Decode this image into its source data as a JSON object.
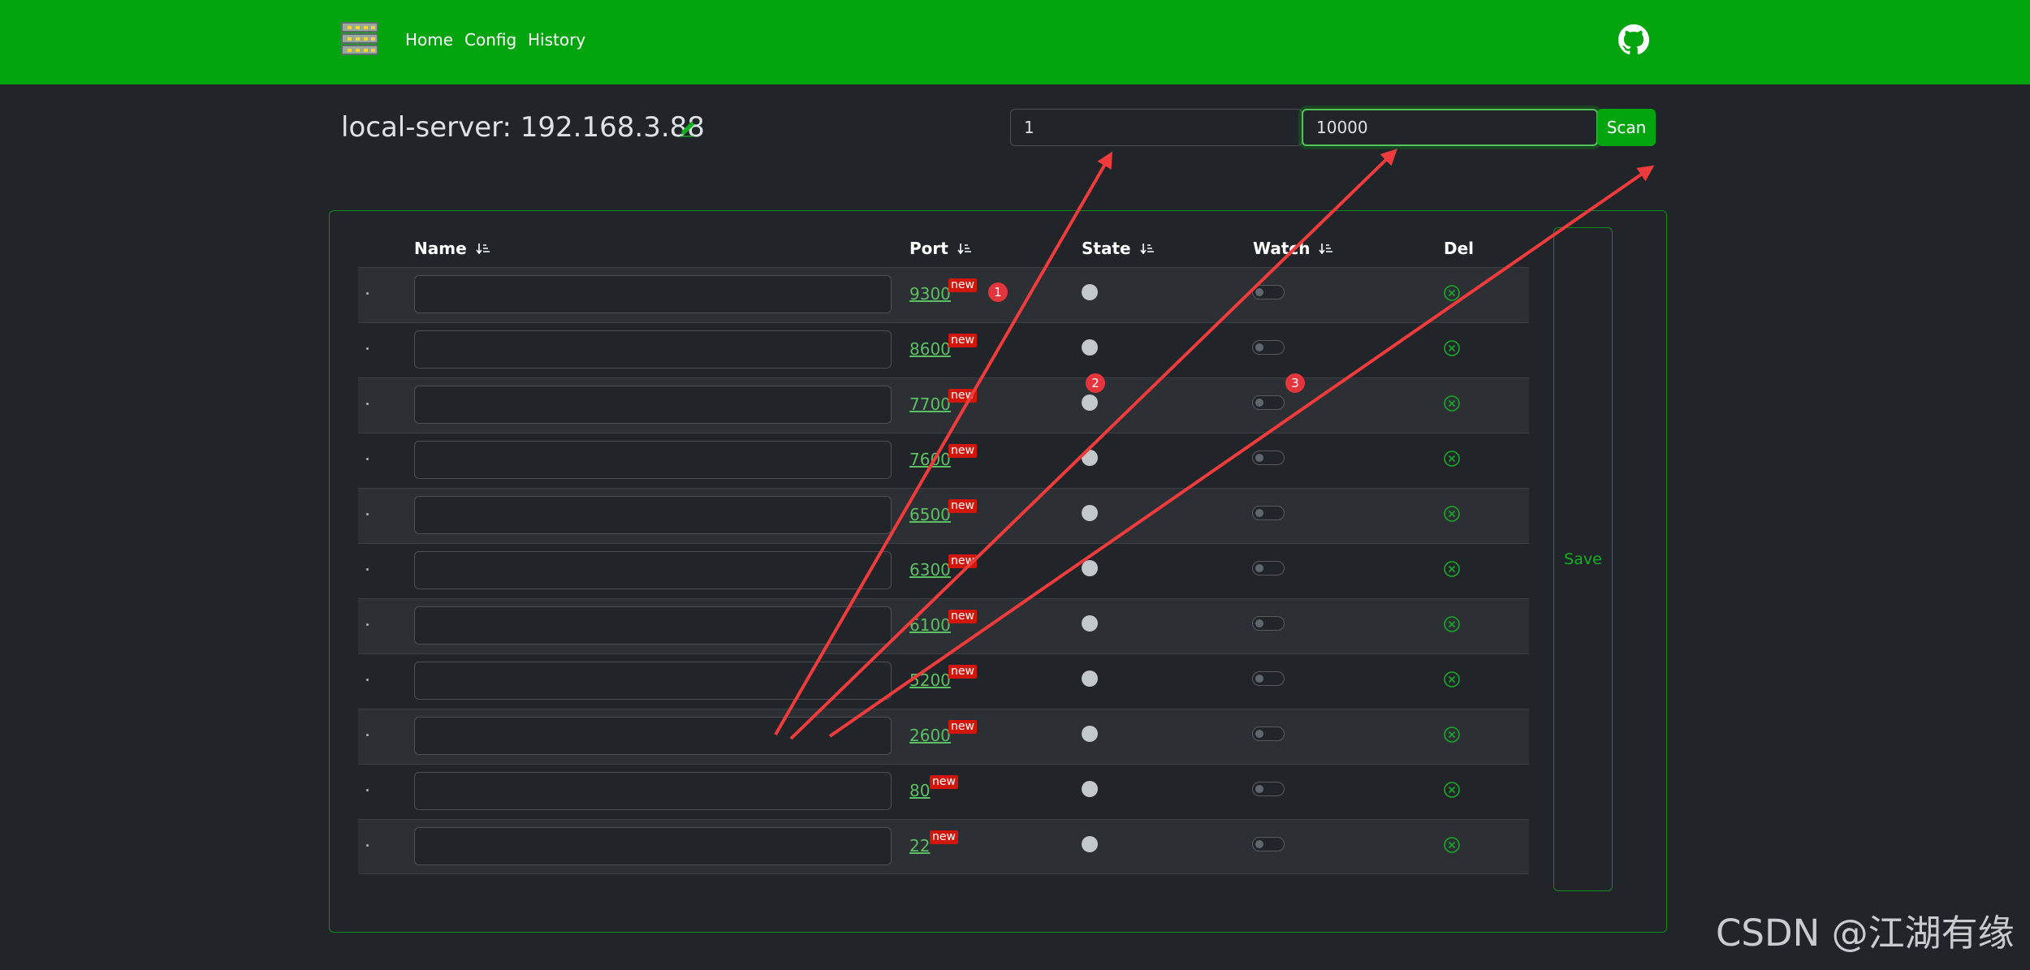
{
  "nav": {
    "links": [
      "Home",
      "Config",
      "History"
    ]
  },
  "server": {
    "title": "local-server: 192.168.3.88"
  },
  "scan": {
    "start_value": "1",
    "end_value": "10000",
    "button_label": "Scan"
  },
  "table": {
    "headers": {
      "name": "Name",
      "port": "Port",
      "state": "State",
      "watch": "Watch",
      "del": "Del"
    },
    "rows": [
      {
        "index": ".",
        "name": "",
        "port": "9300",
        "badge": "new",
        "state": "off",
        "watch": false
      },
      {
        "index": ".",
        "name": "",
        "port": "8600",
        "badge": "new",
        "state": "off",
        "watch": false
      },
      {
        "index": ".",
        "name": "",
        "port": "7700",
        "badge": "new",
        "state": "off",
        "watch": false
      },
      {
        "index": ".",
        "name": "",
        "port": "7600",
        "badge": "new",
        "state": "off",
        "watch": false
      },
      {
        "index": ".",
        "name": "",
        "port": "6500",
        "badge": "new",
        "state": "off",
        "watch": false
      },
      {
        "index": ".",
        "name": "",
        "port": "6300",
        "badge": "new",
        "state": "off",
        "watch": false
      },
      {
        "index": ".",
        "name": "",
        "port": "6100",
        "badge": "new",
        "state": "off",
        "watch": false
      },
      {
        "index": ".",
        "name": "",
        "port": "5200",
        "badge": "new",
        "state": "off",
        "watch": false
      },
      {
        "index": ".",
        "name": "",
        "port": "2600",
        "badge": "new",
        "state": "off",
        "watch": false
      },
      {
        "index": ".",
        "name": "",
        "port": "80",
        "badge": "new",
        "state": "off",
        "watch": false
      },
      {
        "index": ".",
        "name": "",
        "port": "22",
        "badge": "new",
        "state": "off",
        "watch": false
      }
    ],
    "save_label": "Save"
  },
  "annotations": {
    "markers": [
      "1",
      "2",
      "3"
    ],
    "color": "#e4353d"
  },
  "watermark": "CSDN @江湖有缘",
  "colors": {
    "brand_green": "#03a50f",
    "background": "#212529",
    "link_green": "#5cbf63",
    "badge_red": "#d1170c"
  }
}
